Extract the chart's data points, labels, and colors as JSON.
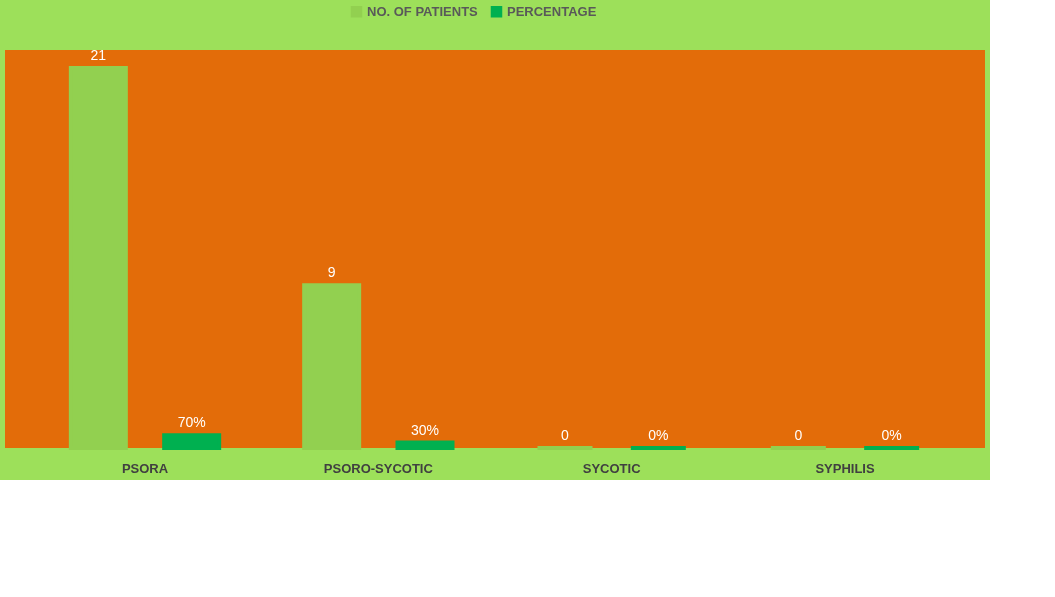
{
  "chart_data": {
    "type": "bar",
    "categories": [
      "PSORA",
      "PSORO-SYCOTIC",
      "SYCOTIC",
      "SYPHILIS"
    ],
    "series": [
      {
        "name": "NO. OF PATIENTS",
        "color": "#92d050",
        "values": [
          21,
          9,
          0,
          0
        ],
        "value_labels": [
          "21",
          "9",
          "0",
          "0"
        ]
      },
      {
        "name": "PERCENTAGE",
        "color": "#00b050",
        "values": [
          0.7,
          0.3,
          0,
          0
        ],
        "value_labels": [
          "70%",
          "30%",
          "0%",
          "0%"
        ]
      }
    ],
    "legend": "top",
    "grid": false
  }
}
